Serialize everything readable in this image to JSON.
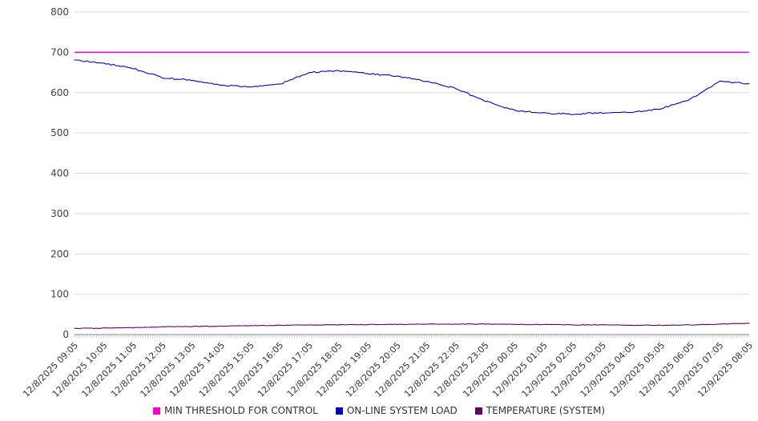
{
  "chart_data": {
    "type": "line",
    "title": "",
    "xlabel": "",
    "ylabel": "",
    "ylim": [
      0,
      800
    ],
    "yticks": [
      0,
      100,
      200,
      300,
      400,
      500,
      600,
      700,
      800
    ],
    "grid": true,
    "legend_position": "bottom",
    "x_labels": [
      "12/8/2025 09:05",
      "12/8/2025 10:05",
      "12/8/2025 11:05",
      "12/8/2025 12:05",
      "12/8/2025 13:05",
      "12/8/2025 14:05",
      "12/8/2025 15:05",
      "12/8/2025 16:05",
      "12/8/2025 17:05",
      "12/8/2025 18:05",
      "12/8/2025 19:05",
      "12/8/2025 20:05",
      "12/8/2025 21:05",
      "12/8/2025 22:05",
      "12/8/2025 23:05",
      "12/9/2025 00:05",
      "12/9/2025 01:05",
      "12/9/2025 02:05",
      "12/9/2025 03:05",
      "12/9/2025 04:05",
      "12/9/2025 05:05",
      "12/9/2025 06:05",
      "12/9/2025 07:05",
      "12/9/2025 08:05"
    ],
    "series": [
      {
        "name": "MIN THRESHOLD FOR CONTROL",
        "color": "#ff00cc",
        "constant": 700
      },
      {
        "name": "ON-LINE SYSTEM LOAD",
        "color": "#0000cc",
        "values": [
          681,
          673,
          660,
          637,
          630,
          618,
          614,
          621,
          650,
          654,
          647,
          641,
          628,
          610,
          579,
          556,
          549,
          547,
          550,
          551,
          560,
          584,
          628,
          622
        ]
      },
      {
        "name": "TEMPERATURE (SYSTEM)",
        "color": "#660066",
        "values": [
          15,
          16,
          17,
          19,
          20,
          21,
          22,
          23,
          24,
          24,
          25,
          25,
          26,
          26,
          26,
          25,
          25,
          24,
          24,
          23,
          23,
          24,
          26,
          28
        ]
      }
    ]
  }
}
